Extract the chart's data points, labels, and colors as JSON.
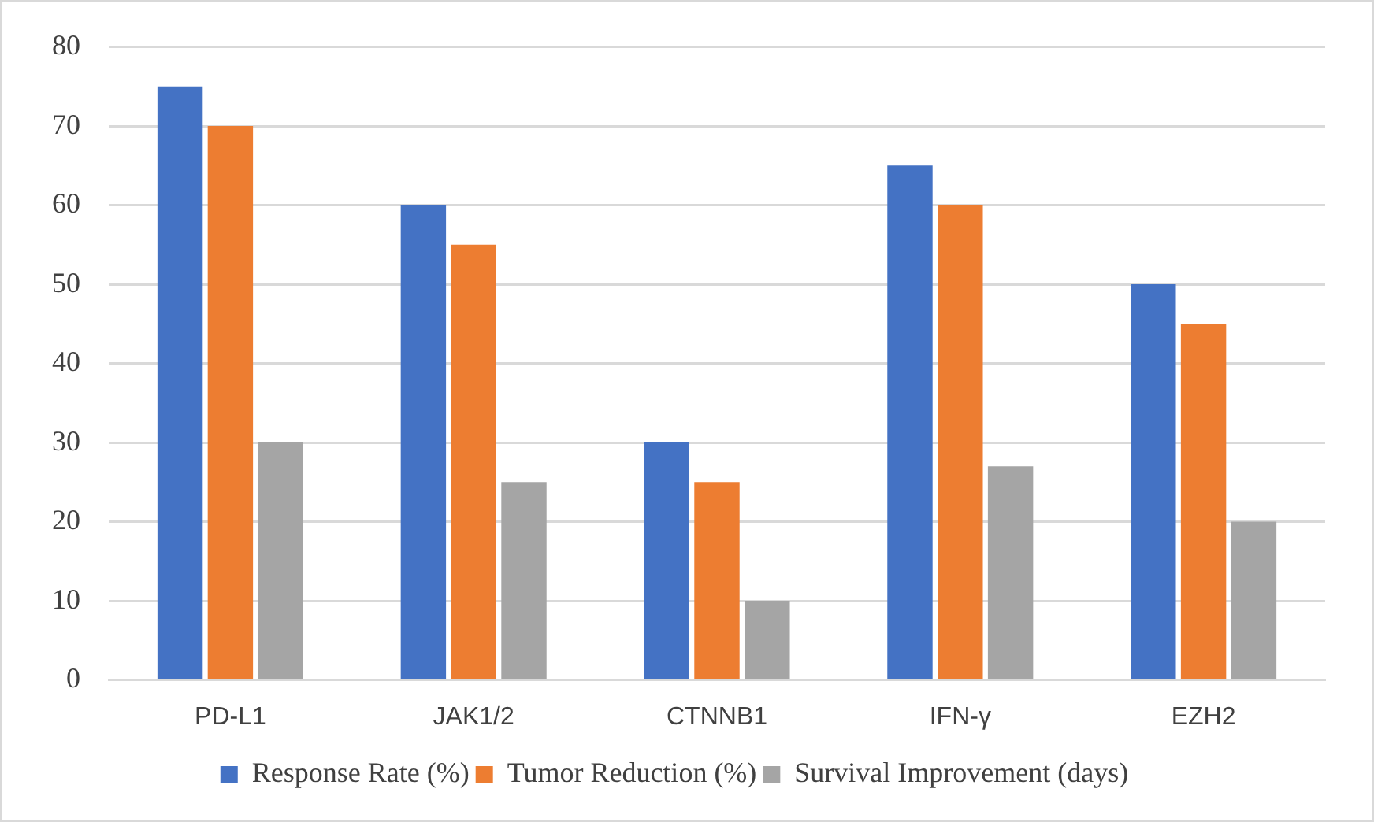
{
  "chart_data": {
    "type": "bar",
    "categories": [
      "PD-L1",
      "JAK1/2",
      "CTNNB1",
      "IFN-γ",
      "EZH2"
    ],
    "series": [
      {
        "name": "Response Rate (%)",
        "color": "#4472c4",
        "values": [
          75,
          60,
          30,
          65,
          50
        ]
      },
      {
        "name": "Tumor Reduction (%)",
        "color": "#ed7d31",
        "values": [
          70,
          55,
          25,
          60,
          45
        ]
      },
      {
        "name": "Survival Improvement (days)",
        "color": "#a5a5a5",
        "values": [
          30,
          25,
          10,
          27,
          20
        ]
      }
    ],
    "ylim": [
      0,
      80
    ],
    "yticks": [
      0,
      10,
      20,
      30,
      40,
      50,
      60,
      70,
      80
    ],
    "grid": "y",
    "legend": "bottom"
  }
}
